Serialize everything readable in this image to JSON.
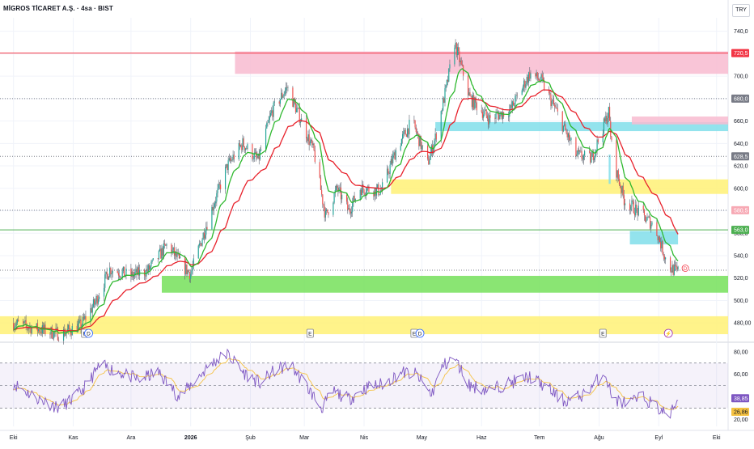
{
  "header": {
    "title": "MİGROS TİCARET A.Ş. · 4sa · BIST",
    "currency": "TRY"
  },
  "chart_data": [
    {
      "type": "candlestick",
      "name": "price",
      "ylim": [
        465,
        752
      ],
      "y_ticks": [
        480,
        500,
        520,
        540,
        560,
        580,
        600,
        620,
        640,
        660,
        680,
        700,
        720,
        740
      ],
      "y_tick_labels": [
        "480,00",
        "500,0",
        "520,0",
        "540,0",
        "560,0",
        "580,0",
        "600,0",
        "620,0",
        "640,0",
        "660,0",
        "680,0",
        "700,0",
        "720,0",
        "740,0"
      ],
      "price_labels": [
        {
          "label": "720,5",
          "value": 720.5,
          "color": "#f23645"
        },
        {
          "label": "680,0",
          "value": 680.0,
          "color": "#787b86"
        },
        {
          "label": "628,5",
          "value": 628.5,
          "color": "#787b86"
        },
        {
          "label": "580,5",
          "value": 580.5,
          "color": "#f7a9b4"
        },
        {
          "label": "563,0",
          "value": 563.0,
          "color": "#4caf50"
        }
      ],
      "horizontal_lines": [
        {
          "value": 720.5,
          "color": "#f23645",
          "style": "solid"
        },
        {
          "value": 563.0,
          "color": "#4caf50",
          "style": "solid"
        },
        {
          "value": 680.0,
          "color": "#787b86",
          "style": "dotted"
        },
        {
          "value": 628.5,
          "color": "#787b86",
          "style": "dotted"
        },
        {
          "value": 580.5,
          "color": "#787b86",
          "style": "dotted"
        },
        {
          "value": 527.0,
          "color": "#787b86",
          "style": "dotted"
        }
      ],
      "zones": [
        {
          "color": "#f8bbd0",
          "x_from": "2026-01-24",
          "x_to": "end",
          "y_from": 702,
          "y_to": 722
        },
        {
          "color": "#80deea",
          "x_from": "2026-05-08",
          "x_to": "end",
          "y_from": 651,
          "y_to": 659
        },
        {
          "color": "#f8bbd0",
          "x_from": "2026-08-18",
          "x_to": "end",
          "y_from": 657,
          "y_to": 664
        },
        {
          "color": "#fff176",
          "x_from": "2026-04-15",
          "x_to": "end",
          "y_from": 595,
          "y_to": 608
        },
        {
          "color": "#80deea",
          "x_from": "2026-08-06",
          "x_to": "2026-08-07",
          "y_from": 604,
          "y_to": 630
        },
        {
          "color": "#80deea",
          "x_from": "2026-08-17",
          "x_to": "2026-09-11",
          "y_from": 550,
          "y_to": 562
        },
        {
          "color": "#76e05a",
          "x_from": "2025-12-17",
          "x_to": "end",
          "y_from": 507,
          "y_to": 522
        },
        {
          "color": "#fff176",
          "x_from": "start",
          "x_to": "end",
          "y_from": 470,
          "y_to": 486
        }
      ],
      "events": [
        {
          "date": "2025-11-07",
          "label": "E",
          "kind": "earnings"
        },
        {
          "date": "2025-11-09",
          "label": "D",
          "kind": "dividend"
        },
        {
          "date": "2026-03-04",
          "label": "E",
          "kind": "earnings"
        },
        {
          "date": "2026-04-27",
          "label": "E",
          "kind": "earnings"
        },
        {
          "date": "2026-04-30",
          "label": "D",
          "kind": "dividend"
        },
        {
          "date": "2026-08-03",
          "label": "E",
          "kind": "earnings"
        },
        {
          "date": "2026-09-06",
          "label": "⚡",
          "kind": "split"
        }
      ],
      "last_marker": {
        "label": "D"
      },
      "moving_averages": [
        {
          "name": "fast",
          "color": "#2eb82e"
        },
        {
          "name": "slow",
          "color": "#e8212b"
        }
      ],
      "colors": {
        "up": "#26a69a",
        "down": "#ef5350",
        "wick": "#5a6270"
      },
      "x_ticks": [
        "Eki",
        "Kas",
        "Ara",
        "2026",
        "Şub",
        "Mar",
        "Nis",
        "May",
        "Haz",
        "Tem",
        "Ağu",
        "Eyl",
        "Eki"
      ]
    },
    {
      "type": "line",
      "name": "RSI",
      "ylim": [
        14,
        87
      ],
      "y_ticks": [
        20,
        40,
        60,
        80
      ],
      "y_tick_labels": [
        "20,00",
        "40,00",
        "60,00",
        "80,00"
      ],
      "levels": [
        70,
        50,
        30
      ],
      "current_labels": [
        {
          "label": "38,85",
          "value": 38.85,
          "color": "#7e57c2"
        },
        {
          "label": "26,86",
          "value": 26.86,
          "color": "#f5c242"
        }
      ],
      "series": [
        {
          "name": "RSI",
          "color": "#7e57c2"
        },
        {
          "name": "RSI-MA",
          "color": "#f5c242"
        }
      ]
    }
  ],
  "time_axis": {
    "labels": [
      {
        "text": "Eki",
        "date": "2025-10-01"
      },
      {
        "text": "Kas",
        "date": "2025-11-01"
      },
      {
        "text": "Ara",
        "date": "2025-12-01"
      },
      {
        "text": "2026",
        "date": "2026-01-01"
      },
      {
        "text": "Şub",
        "date": "2026-02-01"
      },
      {
        "text": "Mar",
        "date": "2026-03-01"
      },
      {
        "text": "Nis",
        "date": "2026-04-01"
      },
      {
        "text": "May",
        "date": "2026-05-01"
      },
      {
        "text": "Haz",
        "date": "2026-06-01"
      },
      {
        "text": "Tem",
        "date": "2026-07-01"
      },
      {
        "text": "Ağu",
        "date": "2026-08-01"
      },
      {
        "text": "Eyl",
        "date": "2026-09-01"
      },
      {
        "text": "Eki",
        "date": "2026-10-01"
      }
    ]
  },
  "price_path_keypoints": [
    [
      "2025-10-01",
      480
    ],
    [
      "2025-10-10",
      476
    ],
    [
      "2025-10-25",
      470
    ],
    [
      "2025-11-05",
      478
    ],
    [
      "2025-11-12",
      497
    ],
    [
      "2025-11-20",
      528
    ],
    [
      "2025-12-01",
      522
    ],
    [
      "2025-12-10",
      527
    ],
    [
      "2025-12-20",
      550
    ],
    [
      "2025-12-28",
      530
    ],
    [
      "2026-01-01",
      524
    ],
    [
      "2026-01-10",
      572
    ],
    [
      "2026-01-20",
      620
    ],
    [
      "2026-01-28",
      640
    ],
    [
      "2026-02-05",
      625
    ],
    [
      "2026-02-12",
      668
    ],
    [
      "2026-02-20",
      690
    ],
    [
      "2026-02-27",
      662
    ],
    [
      "2026-03-06",
      632
    ],
    [
      "2026-03-12",
      575
    ],
    [
      "2026-03-18",
      600
    ],
    [
      "2026-03-24",
      580
    ],
    [
      "2026-03-30",
      600
    ],
    [
      "2026-04-10",
      598
    ],
    [
      "2026-04-18",
      636
    ],
    [
      "2026-04-26",
      660
    ],
    [
      "2026-05-04",
      622
    ],
    [
      "2026-05-08",
      645
    ],
    [
      "2026-05-14",
      692
    ],
    [
      "2026-05-18",
      730
    ],
    [
      "2026-05-26",
      680
    ],
    [
      "2026-06-05",
      662
    ],
    [
      "2026-06-16",
      670
    ],
    [
      "2026-06-26",
      702
    ],
    [
      "2026-07-02",
      696
    ],
    [
      "2026-07-10",
      668
    ],
    [
      "2026-07-20",
      630
    ],
    [
      "2026-07-28",
      626
    ],
    [
      "2026-08-06",
      668
    ],
    [
      "2026-08-08",
      628
    ],
    [
      "2026-08-14",
      590
    ],
    [
      "2026-08-22",
      578
    ],
    [
      "2026-08-30",
      566
    ],
    [
      "2026-09-06",
      530
    ],
    [
      "2026-09-10",
      526
    ]
  ],
  "rsi_path_keypoints": [
    [
      "2025-10-01",
      52
    ],
    [
      "2025-10-12",
      40
    ],
    [
      "2025-10-25",
      30
    ],
    [
      "2025-11-05",
      44
    ],
    [
      "2025-11-15",
      68
    ],
    [
      "2025-11-25",
      62
    ],
    [
      "2025-12-05",
      55
    ],
    [
      "2025-12-15",
      62
    ],
    [
      "2025-12-26",
      40
    ],
    [
      "2026-01-03",
      54
    ],
    [
      "2026-01-12",
      70
    ],
    [
      "2026-01-20",
      78
    ],
    [
      "2026-01-28",
      62
    ],
    [
      "2026-02-06",
      52
    ],
    [
      "2026-02-14",
      64
    ],
    [
      "2026-02-22",
      68
    ],
    [
      "2026-03-02",
      50
    ],
    [
      "2026-03-10",
      30
    ],
    [
      "2026-03-16",
      45
    ],
    [
      "2026-03-24",
      38
    ],
    [
      "2026-04-02",
      48
    ],
    [
      "2026-04-12",
      52
    ],
    [
      "2026-04-20",
      62
    ],
    [
      "2026-04-28",
      60
    ],
    [
      "2026-05-06",
      42
    ],
    [
      "2026-05-12",
      68
    ],
    [
      "2026-05-18",
      74
    ],
    [
      "2026-05-26",
      50
    ],
    [
      "2026-06-05",
      46
    ],
    [
      "2026-06-15",
      52
    ],
    [
      "2026-06-26",
      58
    ],
    [
      "2026-07-05",
      48
    ],
    [
      "2026-07-14",
      36
    ],
    [
      "2026-07-24",
      42
    ],
    [
      "2026-08-04",
      62
    ],
    [
      "2026-08-08",
      38
    ],
    [
      "2026-08-16",
      34
    ],
    [
      "2026-08-24",
      40
    ],
    [
      "2026-09-02",
      28
    ],
    [
      "2026-09-07",
      24
    ],
    [
      "2026-09-11",
      38.85
    ]
  ]
}
